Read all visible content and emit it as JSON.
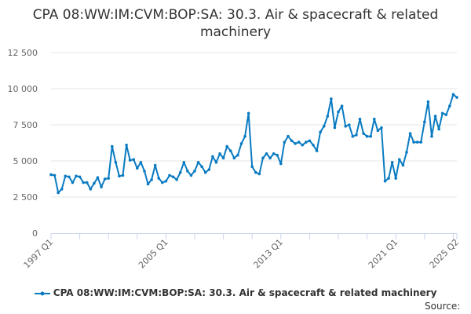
{
  "chart_data": {
    "type": "line",
    "title": "CPA 08:WW:IM:CVM:BOP:SA: 30.3. Air & spacecraft & related machinery",
    "xlabel": "",
    "ylabel": "",
    "start": "1997 Q1",
    "end": "2025 Q2",
    "frequency": "quarterly",
    "ylim": [
      0,
      12500
    ],
    "yticks": [
      "0",
      "2 500",
      "5 000",
      "7 500",
      "10 000",
      "12 500"
    ],
    "ytick_values": [
      0,
      2500,
      5000,
      7500,
      10000,
      12500
    ],
    "xtick_labels": [
      "1997 Q1",
      "2005 Q1",
      "2013 Q1",
      "2021 Q1",
      "2025 Q2"
    ],
    "grid": true,
    "legend_position": "bottom",
    "color": "#0a7bc2",
    "series": [
      {
        "name": "CPA 08:WW:IM:CVM:BOP:SA: 30.3. Air & spacecraft & related machinery",
        "values": [
          4050,
          4000,
          2800,
          3050,
          3950,
          3900,
          3500,
          3950,
          3900,
          3500,
          3500,
          3050,
          3450,
          3850,
          3200,
          3750,
          3800,
          6000,
          4900,
          3950,
          4000,
          6100,
          5050,
          5100,
          4500,
          4900,
          4300,
          3400,
          3700,
          4700,
          3800,
          3500,
          3600,
          4000,
          3900,
          3700,
          4200,
          4900,
          4300,
          4000,
          4300,
          4900,
          4600,
          4200,
          4400,
          5300,
          4900,
          5500,
          5200,
          6000,
          5700,
          5200,
          5400,
          6200,
          6700,
          8300,
          4600,
          4200,
          4100,
          5200,
          5500,
          5200,
          5500,
          5400,
          4800,
          6300,
          6700,
          6400,
          6200,
          6300,
          6100,
          6300,
          6400,
          6100,
          5700,
          7000,
          7400,
          8100,
          9300,
          7300,
          8400,
          8800,
          7400,
          7500,
          6700,
          6800,
          7900,
          6900,
          6700,
          6700,
          7900,
          7100,
          7300,
          3600,
          3800,
          4900,
          3800,
          5100,
          4700,
          5600,
          6900,
          6300,
          6300,
          6300,
          7700,
          9100,
          6700,
          8100,
          7200,
          8300,
          8200,
          8800,
          9600,
          9400
        ]
      }
    ]
  },
  "source_label": "Source:"
}
